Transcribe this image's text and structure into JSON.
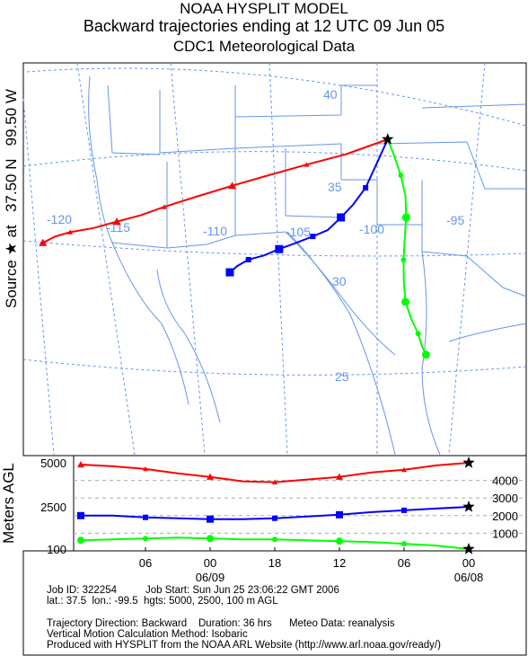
{
  "header": {
    "line1": "NOAA HYSPLIT MODEL",
    "line2": "Backward trajectories ending at 12 UTC 09 Jun 05",
    "line3": "CDC1 Meteorological Data"
  },
  "source_label": {
    "source": "Source",
    "star": "★",
    "at": "at",
    "lat": "37.50 N",
    "lon": "99.50 W"
  },
  "y_axis_label": "Meters AGL",
  "map": {
    "lat_labels": [
      "40",
      "35",
      "30",
      "25"
    ],
    "lon_labels": [
      "-120",
      "-115",
      "-110",
      "-105",
      "-100",
      "-95"
    ]
  },
  "colors": {
    "red": "#ff0000",
    "blue": "#0000ff",
    "green": "#00ff00",
    "grid": "#6495ed"
  },
  "chart_data": {
    "type": "line",
    "title": "Backward trajectories ending at 12 UTC 09 Jun 05",
    "subtitle": "CDC1 Meteorological Data",
    "ylabel": "Meters AGL",
    "left_ticks": [
      "5000",
      "2500",
      "100"
    ],
    "right_ticks": [
      "4000",
      "3000",
      "2000",
      "1000"
    ],
    "x_ticks": [
      "06",
      "00",
      "18",
      "12",
      "06",
      "00"
    ],
    "x_dates": [
      "06/09",
      "06/08"
    ],
    "x_hours_before_end": [
      0,
      3,
      6,
      9,
      12,
      15,
      18,
      21,
      24,
      27,
      30,
      33,
      36
    ],
    "series": [
      {
        "color": "#ff0000",
        "marker": "triangle",
        "start_height_m": 5000,
        "height_m": [
          5000,
          4850,
          4600,
          4450,
          4200,
          4050,
          3900,
          3950,
          4200,
          4400,
          4650,
          4800,
          4900
        ],
        "track_lat": [
          37.5,
          36.8,
          36.3,
          35.8,
          35.3,
          34.8,
          34.3,
          33.9,
          33.6,
          33.3,
          33.1,
          32.9,
          32.6
        ],
        "track_lon": [
          -99.5,
          -101.5,
          -103.5,
          -105.5,
          -107.5,
          -109.5,
          -111.5,
          -113.0,
          -114.5,
          -116.0,
          -117.5,
          -118.5,
          -119.5
        ]
      },
      {
        "color": "#0000ff",
        "marker": "square",
        "start_height_m": 2500,
        "height_m": [
          2500,
          2400,
          2300,
          2200,
          2050,
          1950,
          1850,
          1800,
          1800,
          1850,
          1900,
          2000,
          2000
        ],
        "track_lat": [
          37.5,
          36.4,
          35.2,
          34.4,
          33.8,
          33.2,
          32.9,
          32.6,
          32.3,
          32.0,
          31.8,
          31.5,
          31.2
        ],
        "track_lon": [
          -99.5,
          -100.0,
          -100.6,
          -101.3,
          -102.0,
          -102.8,
          -103.7,
          -104.7,
          -105.8,
          -106.8,
          -107.8,
          -108.6,
          -109.2
        ]
      },
      {
        "color": "#00ff00",
        "marker": "circle",
        "start_height_m": 100,
        "height_m": [
          100,
          300,
          400,
          500,
          550,
          600,
          650,
          650,
          700,
          750,
          700,
          650,
          600
        ],
        "track_lat": [
          37.5,
          36.8,
          35.8,
          34.8,
          33.8,
          32.8,
          31.8,
          30.8,
          29.8,
          29.0,
          28.3,
          27.7,
          27.3
        ],
        "track_lon": [
          -99.5,
          -99.2,
          -98.8,
          -98.5,
          -98.4,
          -98.4,
          -98.4,
          -98.3,
          -98.1,
          -97.6,
          -97.0,
          -96.6,
          -96.2
        ]
      }
    ]
  },
  "footer": {
    "job_id": "Job ID: 322254",
    "job_start": "Job Start: Sun Jun 25 23:06:22 GMT 2006",
    "latlon": "lat.: 37.5  lon.: -99.5  hgts: 5000, 2500, 100 m AGL",
    "direction": "Trajectory Direction: Backward",
    "duration": "Duration: 36 hrs",
    "meteo": "Meteo Data: reanalysis",
    "vertical": "Vertical Motion Calculation Method: Isobaric",
    "produced": "Produced with HYSPLIT from the NOAA ARL Website (http://www.arl.noaa.gov/ready/)"
  }
}
